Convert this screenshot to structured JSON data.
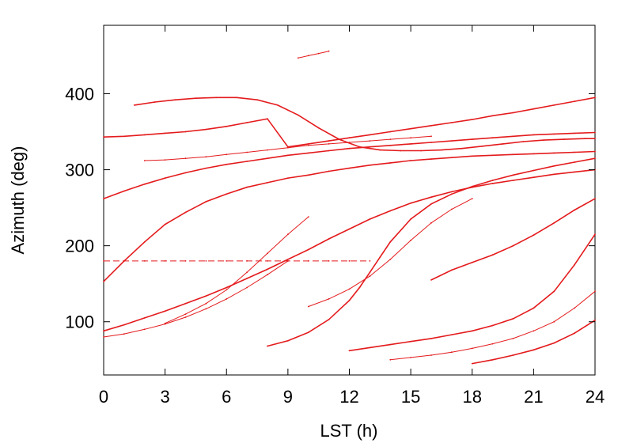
{
  "chart_data": {
    "type": "scatter",
    "title": "",
    "xlabel": "LST (h)",
    "ylabel": "Azimuth (deg)",
    "xlim": [
      0,
      24
    ],
    "ylim": [
      30,
      490
    ],
    "xticks": [
      0,
      3,
      6,
      9,
      12,
      15,
      18,
      21,
      24
    ],
    "yticks": [
      100,
      200,
      300,
      400
    ],
    "grid": false,
    "legend": "none",
    "color": "#e41a1c",
    "series": [
      {
        "x": [
          0,
          1,
          2,
          3,
          4,
          5,
          6,
          7,
          8,
          9,
          10,
          11,
          12,
          13,
          14,
          15,
          16,
          17,
          18,
          19,
          20,
          21,
          22,
          23,
          24
        ],
        "y": [
          153,
          180,
          205,
          228,
          244,
          258,
          268,
          277,
          283,
          289,
          293,
          298,
          302,
          306,
          309,
          312,
          314,
          316,
          318,
          319,
          320,
          321,
          322,
          323,
          324
        ]
      },
      {
        "x": [
          0,
          1,
          2,
          3,
          4,
          5,
          6,
          7,
          8,
          9,
          10,
          11,
          12,
          13,
          14,
          15,
          16,
          17,
          18,
          19,
          20,
          21,
          22,
          23,
          24
        ],
        "y": [
          343,
          344,
          346,
          348,
          350,
          353,
          357,
          362,
          367,
          330,
          334,
          338,
          342,
          346,
          350,
          354,
          358,
          362,
          366,
          371,
          375,
          380,
          385,
          390,
          395
        ]
      },
      {
        "x": [
          1.5,
          2.5,
          3.5,
          4.5,
          5.5,
          6.5,
          7.5,
          8.5,
          9.5,
          10.5,
          11.5,
          12.5,
          13.5,
          14.5,
          15.5,
          16.5,
          17.5,
          18.5,
          19.5,
          20.5,
          21.5,
          22.5,
          23.5,
          24
        ],
        "y": [
          385,
          389,
          392,
          394,
          395,
          395,
          392,
          385,
          372,
          355,
          340,
          330,
          326,
          325,
          325,
          326,
          328,
          331,
          334,
          337,
          339,
          340,
          341,
          341
        ]
      },
      {
        "x": [
          0,
          1,
          2,
          3,
          4,
          5,
          6,
          7,
          8,
          9,
          10,
          11,
          12,
          13,
          14,
          15,
          16,
          17,
          18,
          19,
          20,
          21,
          22,
          23,
          24
        ],
        "y": [
          262,
          272,
          281,
          289,
          296,
          302,
          307,
          311,
          315,
          319,
          322,
          325,
          328,
          330,
          332,
          334,
          336,
          338,
          340,
          342,
          344,
          346,
          347,
          348,
          349
        ]
      },
      {
        "x": [
          0,
          1,
          2,
          3,
          4,
          5,
          6,
          7,
          8,
          9,
          10,
          11,
          12,
          13,
          14,
          15,
          16,
          17,
          18,
          19,
          20,
          21,
          22,
          23,
          24
        ],
        "y": [
          88,
          96,
          105,
          114,
          124,
          134,
          145,
          157,
          169,
          182,
          195,
          209,
          222,
          235,
          246,
          256,
          264,
          271,
          277,
          282,
          286,
          290,
          294,
          297,
          300
        ]
      },
      {
        "x": [
          8,
          9,
          10,
          11,
          12,
          12.5,
          13,
          13.5,
          14,
          15,
          16,
          17,
          18,
          19,
          20,
          21,
          22,
          23,
          24
        ],
        "y": [
          68,
          75,
          86,
          103,
          128,
          145,
          165,
          185,
          205,
          235,
          255,
          268,
          278,
          286,
          293,
          299,
          305,
          310,
          315
        ]
      },
      {
        "x": [
          12,
          13,
          14,
          15,
          16,
          17,
          18,
          19,
          20,
          21,
          22,
          23,
          24
        ],
        "y": [
          62,
          66,
          70,
          74,
          78,
          83,
          88,
          95,
          104,
          118,
          140,
          175,
          215
        ]
      },
      {
        "x": [
          16,
          17,
          18,
          19,
          20,
          21,
          22,
          23,
          24
        ],
        "y": [
          155,
          168,
          178,
          188,
          200,
          214,
          230,
          247,
          262
        ]
      },
      {
        "x": [
          18,
          19,
          20,
          21,
          22,
          23,
          24
        ],
        "y": [
          45,
          50,
          56,
          63,
          72,
          85,
          102
        ]
      },
      {
        "x": [
          0,
          1,
          2,
          3,
          4,
          5,
          6,
          7,
          8,
          9,
          10,
          11,
          12,
          13
        ],
        "y": [
          180,
          180,
          180,
          180,
          180,
          180,
          180,
          180,
          180,
          180,
          180,
          180,
          180,
          180
        ]
      },
      {
        "x": [
          2,
          3,
          4,
          5,
          6,
          7,
          8,
          9,
          10,
          11,
          12,
          13,
          14,
          15,
          16
        ],
        "y": [
          312,
          313,
          315,
          317,
          320,
          323,
          326,
          329,
          332,
          334,
          336,
          338,
          340,
          342,
          344
        ]
      },
      {
        "x": [
          0,
          1,
          2,
          3,
          4,
          5,
          6,
          7,
          8,
          9
        ],
        "y": [
          80,
          84,
          90,
          97,
          106,
          117,
          130,
          145,
          162,
          180
        ]
      },
      {
        "x": [
          10,
          11,
          12,
          13,
          14,
          15,
          16,
          17,
          18
        ],
        "y": [
          120,
          130,
          143,
          160,
          182,
          207,
          230,
          248,
          262
        ]
      },
      {
        "x": [
          3,
          4,
          5,
          6,
          7,
          8,
          9,
          10
        ],
        "y": [
          98,
          110,
          124,
          142,
          165,
          190,
          215,
          238
        ]
      },
      {
        "x": [
          14,
          15,
          16,
          17,
          18,
          19,
          20,
          21,
          22,
          23,
          24
        ],
        "y": [
          50,
          53,
          56,
          60,
          65,
          71,
          78,
          88,
          100,
          118,
          140
        ]
      },
      {
        "x": [
          9.5,
          10,
          10.5,
          11
        ],
        "y": [
          447,
          450,
          453,
          456
        ]
      }
    ]
  }
}
